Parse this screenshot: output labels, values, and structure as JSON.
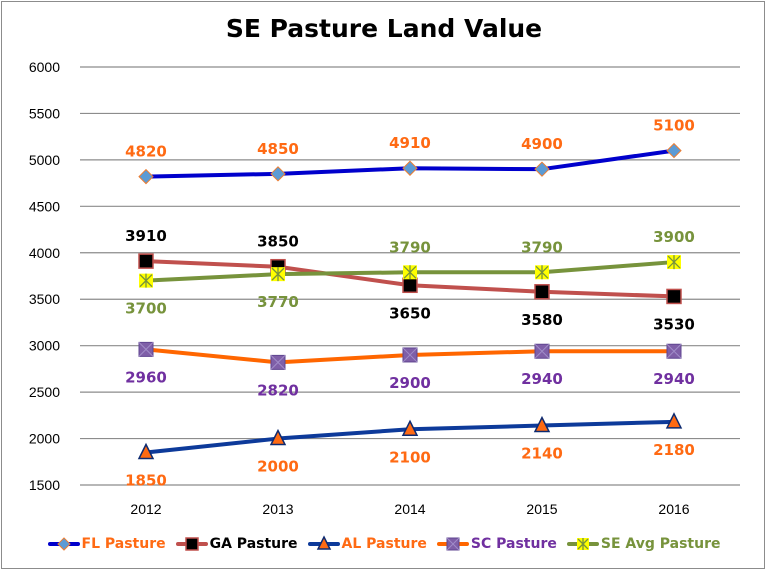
{
  "chart_data": {
    "type": "line",
    "title": "SE Pasture Land Value",
    "categories": [
      "2012",
      "2013",
      "2014",
      "2015",
      "2016"
    ],
    "ylim": [
      1500,
      6000
    ],
    "yticks": [
      1500,
      2000,
      2500,
      3000,
      3500,
      4000,
      4500,
      5000,
      5500,
      6000
    ],
    "grid": true,
    "legend_position": "bottom",
    "data_labels": true,
    "series": [
      {
        "name": "FL Pasture",
        "values": [
          4820,
          4850,
          4910,
          4900,
          5100
        ],
        "line_color": "#0000CC",
        "marker": "diamond",
        "marker_fill": "#5B9BD5",
        "marker_edge": "#ED7D31",
        "label_color": "#FF6A13",
        "label_pos": [
          "above",
          "above",
          "above",
          "above",
          "above"
        ]
      },
      {
        "name": "GA Pasture",
        "values": [
          3910,
          3850,
          3650,
          3580,
          3530
        ],
        "line_color": "#C0504D",
        "marker": "square",
        "marker_fill": "#000000",
        "marker_edge": "#C0504D",
        "label_color": "#000000",
        "label_pos": [
          "above",
          "above",
          "below",
          "below",
          "below"
        ]
      },
      {
        "name": "AL Pasture",
        "values": [
          1850,
          2000,
          2100,
          2140,
          2180
        ],
        "line_color": "#0D3A9A",
        "marker": "triangle",
        "marker_fill": "#FF6A13",
        "marker_edge": "#0D2A70",
        "label_color": "#FF6A13",
        "label_pos": [
          "below",
          "below",
          "below",
          "below",
          "below"
        ]
      },
      {
        "name": "SC Pasture",
        "values": [
          2960,
          2820,
          2900,
          2940,
          2940
        ],
        "line_color": "#FF6600",
        "marker": "x-square",
        "marker_fill": "#7F5FA8",
        "marker_edge": "#5F4590",
        "label_color": "#7030A0",
        "label_pos": [
          "below",
          "below",
          "below",
          "below",
          "below"
        ]
      },
      {
        "name": "SE Avg Pasture",
        "values": [
          3700,
          3770,
          3790,
          3790,
          3900
        ],
        "line_color": "#77933C",
        "marker": "star",
        "marker_fill": "#FFFF00",
        "marker_edge": "#77933C",
        "label_color": "#77933C",
        "label_pos": [
          "below",
          "below",
          "above",
          "above",
          "above"
        ]
      }
    ]
  }
}
